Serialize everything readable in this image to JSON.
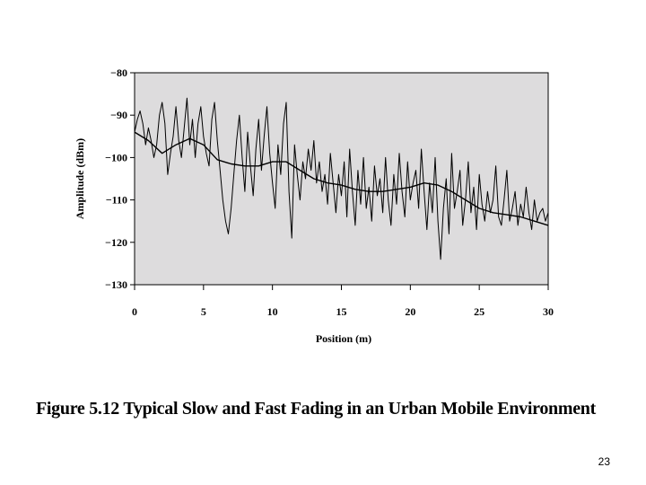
{
  "chart_data": {
    "type": "line",
    "xlabel": "Position (m)",
    "ylabel": "Amplitude (dBm)",
    "xlim": [
      0,
      30
    ],
    "ylim": [
      -130,
      -80
    ],
    "x_ticks": [
      0,
      5,
      10,
      15,
      20,
      25,
      30
    ],
    "x_tick_labels": [
      "0",
      "5",
      "10",
      "15",
      "20",
      "25",
      "30"
    ],
    "y_ticks": [
      -80,
      -90,
      -100,
      -110,
      -120,
      -130
    ],
    "y_tick_labels": [
      "−80",
      "−90",
      "−100",
      "−110",
      "−120",
      "−130"
    ],
    "grid": false,
    "plot_background": "#dddcdd",
    "line_color": "#000000",
    "series": [
      {
        "x": [
          0,
          0.2,
          0.4,
          0.6,
          0.8,
          1.0,
          1.2,
          1.4,
          1.6,
          1.8,
          2.0,
          2.2,
          2.4,
          2.6,
          2.8,
          3.0,
          3.2,
          3.4,
          3.6,
          3.8,
          4.0,
          4.2,
          4.4,
          4.6,
          4.8,
          5.0,
          5.2,
          5.4,
          5.6,
          5.8,
          6.0,
          6.2,
          6.4,
          6.6,
          6.8,
          7.0,
          7.2,
          7.4,
          7.6,
          7.8,
          8.0,
          8.2,
          8.4,
          8.6,
          8.8,
          9.0,
          9.2,
          9.4,
          9.6,
          9.8,
          10.0,
          10.2,
          10.4,
          10.6,
          10.8,
          11.0,
          11.2,
          11.4,
          11.6,
          11.8,
          12.0,
          12.2,
          12.4,
          12.6,
          12.8,
          13.0,
          13.2,
          13.4,
          13.6,
          13.8,
          14.0,
          14.2,
          14.4,
          14.6,
          14.8,
          15.0,
          15.2,
          15.4,
          15.6,
          15.8,
          16.0,
          16.2,
          16.4,
          16.6,
          16.8,
          17.0,
          17.2,
          17.4,
          17.6,
          17.8,
          18.0,
          18.2,
          18.4,
          18.6,
          18.8,
          19.0,
          19.2,
          19.4,
          19.6,
          19.8,
          20.0,
          20.2,
          20.4,
          20.6,
          20.8,
          21.0,
          21.2,
          21.4,
          21.6,
          21.8,
          22.0,
          22.2,
          22.4,
          22.6,
          22.8,
          23.0,
          23.2,
          23.4,
          23.6,
          23.8,
          24.0,
          24.2,
          24.4,
          24.6,
          24.8,
          25.0,
          25.2,
          25.4,
          25.6,
          25.8,
          26.0,
          26.2,
          26.4,
          26.6,
          26.8,
          27.0,
          27.2,
          27.4,
          27.6,
          27.8,
          28.0,
          28.2,
          28.4,
          28.6,
          28.8,
          29.0,
          29.2,
          29.4,
          29.6,
          29.8,
          30.0
        ],
        "y": [
          -94,
          -91,
          -89,
          -92,
          -97,
          -93,
          -96,
          -100,
          -97,
          -90,
          -87,
          -92,
          -104,
          -99,
          -95,
          -88,
          -96,
          -100,
          -93,
          -86,
          -97,
          -91,
          -100,
          -92,
          -88,
          -95,
          -99,
          -102,
          -91,
          -87,
          -96,
          -103,
          -110,
          -115,
          -118,
          -112,
          -104,
          -96,
          -90,
          -100,
          -108,
          -94,
          -102,
          -109,
          -98,
          -91,
          -103,
          -95,
          -88,
          -99,
          -106,
          -112,
          -97,
          -104,
          -92,
          -87,
          -108,
          -119,
          -97,
          -104,
          -110,
          -101,
          -105,
          -98,
          -103,
          -96,
          -106,
          -101,
          -108,
          -104,
          -111,
          -99,
          -106,
          -113,
          -104,
          -109,
          -101,
          -114,
          -98,
          -108,
          -116,
          -103,
          -111,
          -100,
          -112,
          -107,
          -115,
          -102,
          -109,
          -105,
          -113,
          -100,
          -110,
          -116,
          -104,
          -111,
          -99,
          -108,
          -114,
          -101,
          -110,
          -106,
          -103,
          -112,
          -98,
          -108,
          -117,
          -106,
          -113,
          -100,
          -115,
          -124,
          -112,
          -105,
          -118,
          -99,
          -112,
          -108,
          -103,
          -116,
          -110,
          -101,
          -113,
          -107,
          -117,
          -104,
          -111,
          -115,
          -108,
          -113,
          -110,
          -102,
          -114,
          -116,
          -110,
          -103,
          -115,
          -112,
          -108,
          -116,
          -111,
          -114,
          -107,
          -113,
          -117,
          -110,
          -115,
          -113,
          -112,
          -115,
          -113
        ]
      },
      {
        "x": [
          0,
          1,
          2,
          3,
          4,
          5,
          6,
          7,
          8,
          9,
          10,
          11,
          12,
          13,
          14,
          15,
          16,
          17,
          18,
          19,
          20,
          21,
          22,
          23,
          24,
          25,
          26,
          27,
          28,
          29,
          30
        ],
        "y": [
          -94,
          -96,
          -99,
          -97,
          -95.5,
          -97,
          -100.5,
          -101.5,
          -102,
          -102,
          -101,
          -101,
          -103,
          -105,
          -106,
          -106.5,
          -107.5,
          -108,
          -108,
          -107.5,
          -107,
          -106,
          -106.5,
          -108,
          -110,
          -112,
          -113,
          -113.5,
          -114,
          -115,
          -116
        ]
      }
    ]
  },
  "caption": "Figure 5.12  Typical Slow and Fast Fading in an Urban Mobile Environment",
  "page_number": "23"
}
